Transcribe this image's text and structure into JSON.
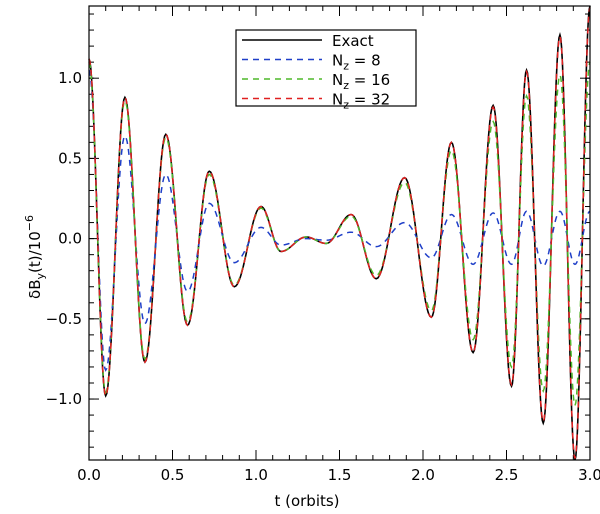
{
  "chart_data": {
    "type": "line",
    "xlabel": "t (orbits)",
    "ylabel_main": "δB",
    "ylabel_sub": "y",
    "ylabel_mid": "(t)/10",
    "ylabel_sup": "−6",
    "xlim": [
      0.0,
      3.0
    ],
    "ylim": [
      -1.38,
      1.45
    ],
    "xticks": [
      {
        "value": 0.0,
        "label": "0.0"
      },
      {
        "value": 0.5,
        "label": "0.5"
      },
      {
        "value": 1.0,
        "label": "1.0"
      },
      {
        "value": 1.5,
        "label": "1.5"
      },
      {
        "value": 2.0,
        "label": "2.0"
      },
      {
        "value": 2.5,
        "label": "2.5"
      },
      {
        "value": 3.0,
        "label": "3.0"
      }
    ],
    "yticks": [
      {
        "value": -1.0,
        "label": "−1.0"
      },
      {
        "value": -0.5,
        "label": "−0.5"
      },
      {
        "value": 0.0,
        "label": "0.0"
      },
      {
        "value": 0.5,
        "label": "0.5"
      },
      {
        "value": 1.0,
        "label": "1.0"
      }
    ],
    "legend_position": "top-center",
    "series": [
      {
        "name": "Exact",
        "name_main": "Exact",
        "name_sub": "",
        "name_tail": "",
        "color": "#000000",
        "dash": "",
        "x": [
          0.0,
          0.1,
          0.215,
          0.335,
          0.46,
          0.59,
          0.72,
          0.87,
          1.03,
          1.15,
          1.3,
          1.42,
          1.57,
          1.72,
          1.89,
          2.05,
          2.17,
          2.3,
          2.42,
          2.53,
          2.62,
          2.72,
          2.82,
          2.91,
          3.0
        ],
        "y": [
          1.12,
          -0.98,
          0.88,
          -0.77,
          0.65,
          -0.54,
          0.42,
          -0.3,
          0.2,
          -0.08,
          0.01,
          -0.03,
          0.15,
          -0.25,
          0.38,
          -0.49,
          0.6,
          -0.71,
          0.83,
          -0.92,
          1.05,
          -1.15,
          1.27,
          -1.38,
          1.45
        ]
      },
      {
        "name": "Nz = 8",
        "name_main": "N",
        "name_sub": "z",
        "name_tail": " = 8",
        "color": "#1f3fc8",
        "dash": "6,5",
        "x": [
          0.0,
          0.1,
          0.215,
          0.335,
          0.46,
          0.59,
          0.72,
          0.87,
          1.03,
          1.15,
          1.3,
          1.42,
          1.57,
          1.72,
          1.89,
          2.05,
          2.17,
          2.3,
          2.42,
          2.53,
          2.62,
          2.72,
          2.82,
          2.91,
          3.0
        ],
        "y": [
          1.05,
          -0.82,
          0.64,
          -0.53,
          0.4,
          -0.33,
          0.22,
          -0.15,
          0.07,
          -0.04,
          0.0,
          -0.01,
          0.04,
          -0.05,
          0.1,
          -0.12,
          0.15,
          -0.16,
          0.16,
          -0.16,
          0.17,
          -0.17,
          0.17,
          -0.16,
          0.17
        ]
      },
      {
        "name": "Nz = 16",
        "name_main": "N",
        "name_sub": "z",
        "name_tail": " = 16",
        "color": "#4fb82a",
        "dash": "6,5",
        "x": [
          0.0,
          0.1,
          0.215,
          0.335,
          0.46,
          0.59,
          0.72,
          0.87,
          1.03,
          1.15,
          1.3,
          1.42,
          1.57,
          1.72,
          1.89,
          2.05,
          2.17,
          2.3,
          2.42,
          2.53,
          2.62,
          2.72,
          2.82,
          2.91,
          3.0
        ],
        "y": [
          1.1,
          -0.96,
          0.86,
          -0.75,
          0.63,
          -0.52,
          0.4,
          -0.29,
          0.19,
          -0.08,
          0.01,
          -0.03,
          0.14,
          -0.23,
          0.35,
          -0.45,
          0.55,
          -0.63,
          0.73,
          -0.8,
          0.89,
          -0.95,
          1.02,
          -1.04,
          1.1
        ]
      },
      {
        "name": "Nz = 32",
        "name_main": "N",
        "name_sub": "z",
        "name_tail": " = 32",
        "color": "#e02020",
        "dash": "6,5",
        "x": [
          0.0,
          0.1,
          0.215,
          0.335,
          0.46,
          0.59,
          0.72,
          0.87,
          1.03,
          1.15,
          1.3,
          1.42,
          1.57,
          1.72,
          1.89,
          2.05,
          2.17,
          2.3,
          2.42,
          2.53,
          2.62,
          2.72,
          2.82,
          2.91,
          3.0
        ],
        "y": [
          1.12,
          -0.98,
          0.88,
          -0.77,
          0.65,
          -0.54,
          0.42,
          -0.3,
          0.2,
          -0.08,
          0.01,
          -0.03,
          0.15,
          -0.25,
          0.38,
          -0.49,
          0.6,
          -0.71,
          0.82,
          -0.91,
          1.04,
          -1.14,
          1.26,
          -1.37,
          1.44
        ]
      }
    ]
  }
}
